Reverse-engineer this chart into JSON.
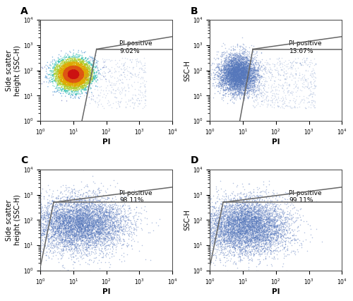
{
  "panels": [
    {
      "label": "A",
      "ylabel": "Side scatter\nheight (SSC-H)",
      "pi_positive": "9.02%",
      "gate": {
        "diag_x1": 18,
        "diag_y1": 1.0,
        "diag_x2": 50,
        "diag_y2": 700,
        "horiz_x2": 10000,
        "horiz_y2": 700,
        "top_y2": 2200
      },
      "cluster_pi_mean_log": 1.0,
      "cluster_pi_std_log": 0.28,
      "cluster_ssc_mean_log": 1.85,
      "cluster_ssc_std_log": 0.3,
      "n_main": 6000,
      "scatter_pi_range": [
        1.3,
        3.2
      ],
      "scatter_ssc_range": [
        0.5,
        2.5
      ],
      "n_scatter": 400,
      "has_color_gradient": true
    },
    {
      "label": "B",
      "ylabel": "SSC-H",
      "pi_positive": "13.67%",
      "gate": {
        "diag_x1": 8,
        "diag_y1": 1.0,
        "diag_x2": 20,
        "diag_y2": 700,
        "horiz_x2": 10000,
        "horiz_y2": 700,
        "top_y2": 2200
      },
      "cluster_pi_mean_log": 0.85,
      "cluster_pi_std_log": 0.28,
      "cluster_ssc_mean_log": 1.85,
      "cluster_ssc_std_log": 0.38,
      "n_main": 5000,
      "scatter_pi_range": [
        1.3,
        3.2
      ],
      "scatter_ssc_range": [
        0.5,
        2.5
      ],
      "n_scatter": 600,
      "has_color_gradient": false
    },
    {
      "label": "C",
      "ylabel": "Side scatter\nheight (SSC-H)",
      "pi_positive": "98.11%",
      "gate": {
        "diag_x1": 1.0,
        "diag_y1": 1.5,
        "diag_x2": 2.5,
        "diag_y2": 500,
        "horiz_x2": 10000,
        "horiz_y2": 500,
        "top_y2": 2000
      },
      "cluster_pi_mean_log": 1.2,
      "cluster_pi_std_log": 0.7,
      "cluster_ssc_mean_log": 1.85,
      "cluster_ssc_std_log": 0.55,
      "n_main": 6000,
      "scatter_pi_range": [
        0.0,
        0.0
      ],
      "scatter_ssc_range": [
        0.0,
        0.0
      ],
      "n_scatter": 0,
      "has_color_gradient": false
    },
    {
      "label": "D",
      "ylabel": "SSC-H",
      "pi_positive": "99.11%",
      "gate": {
        "diag_x1": 1.0,
        "diag_y1": 1.5,
        "diag_x2": 2.5,
        "diag_y2": 500,
        "horiz_x2": 10000,
        "horiz_y2": 500,
        "top_y2": 2000
      },
      "cluster_pi_mean_log": 1.1,
      "cluster_pi_std_log": 0.65,
      "cluster_ssc_mean_log": 1.75,
      "cluster_ssc_std_log": 0.55,
      "n_main": 6000,
      "scatter_pi_range": [
        0.0,
        0.0
      ],
      "scatter_ssc_range": [
        0.0,
        0.0
      ],
      "n_scatter": 0,
      "has_color_gradient": false
    }
  ],
  "xlim": [
    1.0,
    10000
  ],
  "ylim": [
    1.0,
    10000
  ],
  "gate_color": "#666666",
  "dot_color_main": "#5577bb",
  "dot_size": 1.2,
  "dot_alpha": 0.45,
  "font_size_annotation": 6.5,
  "font_size_axis_label": 7.5,
  "font_size_panel_label": 10
}
